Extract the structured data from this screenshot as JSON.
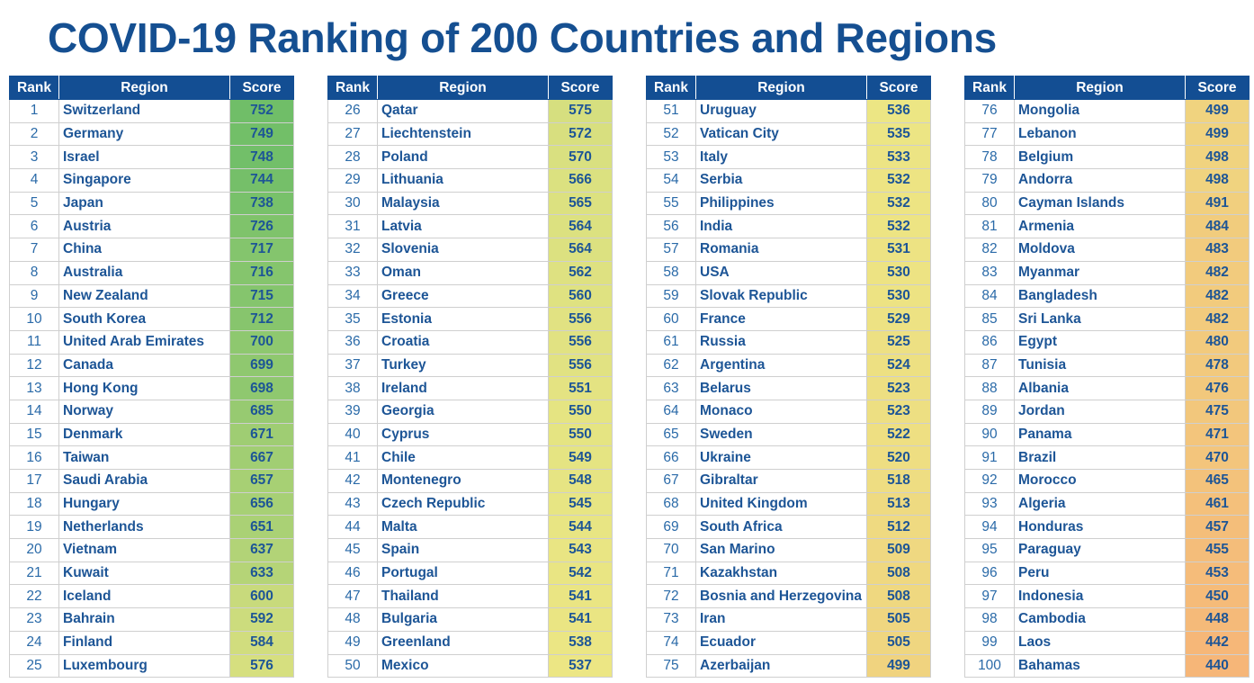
{
  "title": "COVID-19 Ranking of 200 Countries and Regions",
  "headers": {
    "rank": "Rank",
    "region": "Region",
    "score": "Score"
  },
  "columns": [
    [
      {
        "rank": "1",
        "region": "Switzerland",
        "score": "752"
      },
      {
        "rank": "2",
        "region": "Germany",
        "score": "749"
      },
      {
        "rank": "3",
        "region": "Israel",
        "score": "748"
      },
      {
        "rank": "4",
        "region": "Singapore",
        "score": "744"
      },
      {
        "rank": "5",
        "region": "Japan",
        "score": "738"
      },
      {
        "rank": "6",
        "region": "Austria",
        "score": "726"
      },
      {
        "rank": "7",
        "region": "China",
        "score": "717"
      },
      {
        "rank": "8",
        "region": "Australia",
        "score": "716"
      },
      {
        "rank": "9",
        "region": "New Zealand",
        "score": "715"
      },
      {
        "rank": "10",
        "region": "South Korea",
        "score": "712"
      },
      {
        "rank": "11",
        "region": "United Arab Emirates",
        "score": "700"
      },
      {
        "rank": "12",
        "region": "Canada",
        "score": "699"
      },
      {
        "rank": "13",
        "region": "Hong Kong",
        "score": "698"
      },
      {
        "rank": "14",
        "region": "Norway",
        "score": "685"
      },
      {
        "rank": "15",
        "region": "Denmark",
        "score": "671"
      },
      {
        "rank": "16",
        "region": "Taiwan",
        "score": "667"
      },
      {
        "rank": "17",
        "region": "Saudi Arabia",
        "score": "657"
      },
      {
        "rank": "18",
        "region": "Hungary",
        "score": "656"
      },
      {
        "rank": "19",
        "region": "Netherlands",
        "score": "651"
      },
      {
        "rank": "20",
        "region": "Vietnam",
        "score": "637"
      },
      {
        "rank": "21",
        "region": "Kuwait",
        "score": "633"
      },
      {
        "rank": "22",
        "region": "Iceland",
        "score": "600"
      },
      {
        "rank": "23",
        "region": "Bahrain",
        "score": "592"
      },
      {
        "rank": "24",
        "region": "Finland",
        "score": "584"
      },
      {
        "rank": "25",
        "region": "Luxembourg",
        "score": "576"
      }
    ],
    [
      {
        "rank": "26",
        "region": "Qatar",
        "score": "575"
      },
      {
        "rank": "27",
        "region": "Liechtenstein",
        "score": "572"
      },
      {
        "rank": "28",
        "region": "Poland",
        "score": "570"
      },
      {
        "rank": "29",
        "region": "Lithuania",
        "score": "566"
      },
      {
        "rank": "30",
        "region": "Malaysia",
        "score": "565"
      },
      {
        "rank": "31",
        "region": "Latvia",
        "score": "564"
      },
      {
        "rank": "32",
        "region": "Slovenia",
        "score": "564"
      },
      {
        "rank": "33",
        "region": "Oman",
        "score": "562"
      },
      {
        "rank": "34",
        "region": "Greece",
        "score": "560"
      },
      {
        "rank": "35",
        "region": "Estonia",
        "score": "556"
      },
      {
        "rank": "36",
        "region": "Croatia",
        "score": "556"
      },
      {
        "rank": "37",
        "region": "Turkey",
        "score": "556"
      },
      {
        "rank": "38",
        "region": "Ireland",
        "score": "551"
      },
      {
        "rank": "39",
        "region": "Georgia",
        "score": "550"
      },
      {
        "rank": "40",
        "region": "Cyprus",
        "score": "550"
      },
      {
        "rank": "41",
        "region": "Chile",
        "score": "549"
      },
      {
        "rank": "42",
        "region": "Montenegro",
        "score": "548"
      },
      {
        "rank": "43",
        "region": "Czech Republic",
        "score": "545"
      },
      {
        "rank": "44",
        "region": "Malta",
        "score": "544"
      },
      {
        "rank": "45",
        "region": "Spain",
        "score": "543"
      },
      {
        "rank": "46",
        "region": "Portugal",
        "score": "542"
      },
      {
        "rank": "47",
        "region": "Thailand",
        "score": "541"
      },
      {
        "rank": "48",
        "region": "Bulgaria",
        "score": "541"
      },
      {
        "rank": "49",
        "region": "Greenland",
        "score": "538"
      },
      {
        "rank": "50",
        "region": "Mexico",
        "score": "537"
      }
    ],
    [
      {
        "rank": "51",
        "region": "Uruguay",
        "score": "536"
      },
      {
        "rank": "52",
        "region": "Vatican City",
        "score": "535"
      },
      {
        "rank": "53",
        "region": "Italy",
        "score": "533"
      },
      {
        "rank": "54",
        "region": "Serbia",
        "score": "532"
      },
      {
        "rank": "55",
        "region": "Philippines",
        "score": "532"
      },
      {
        "rank": "56",
        "region": "India",
        "score": "532"
      },
      {
        "rank": "57",
        "region": "Romania",
        "score": "531"
      },
      {
        "rank": "58",
        "region": "USA",
        "score": "530"
      },
      {
        "rank": "59",
        "region": "Slovak Republic",
        "score": "530"
      },
      {
        "rank": "60",
        "region": "France",
        "score": "529"
      },
      {
        "rank": "61",
        "region": "Russia",
        "score": "525"
      },
      {
        "rank": "62",
        "region": "Argentina",
        "score": "524"
      },
      {
        "rank": "63",
        "region": "Belarus",
        "score": "523"
      },
      {
        "rank": "64",
        "region": "Monaco",
        "score": "523"
      },
      {
        "rank": "65",
        "region": "Sweden",
        "score": "522"
      },
      {
        "rank": "66",
        "region": "Ukraine",
        "score": "520"
      },
      {
        "rank": "67",
        "region": "Gibraltar",
        "score": "518"
      },
      {
        "rank": "68",
        "region": "United Kingdom",
        "score": "513"
      },
      {
        "rank": "69",
        "region": "South Africa",
        "score": "512"
      },
      {
        "rank": "70",
        "region": "San Marino",
        "score": "509"
      },
      {
        "rank": "71",
        "region": "Kazakhstan",
        "score": "508"
      },
      {
        "rank": "72",
        "region": "Bosnia and Herzegovina",
        "score": "508"
      },
      {
        "rank": "73",
        "region": "Iran",
        "score": "505"
      },
      {
        "rank": "74",
        "region": "Ecuador",
        "score": "505"
      },
      {
        "rank": "75",
        "region": "Azerbaijan",
        "score": "499"
      }
    ],
    [
      {
        "rank": "76",
        "region": "Mongolia",
        "score": "499"
      },
      {
        "rank": "77",
        "region": "Lebanon",
        "score": "499"
      },
      {
        "rank": "78",
        "region": "Belgium",
        "score": "498"
      },
      {
        "rank": "79",
        "region": "Andorra",
        "score": "498"
      },
      {
        "rank": "80",
        "region": "Cayman Islands",
        "score": "491"
      },
      {
        "rank": "81",
        "region": "Armenia",
        "score": "484"
      },
      {
        "rank": "82",
        "region": "Moldova",
        "score": "483"
      },
      {
        "rank": "83",
        "region": "Myanmar",
        "score": "482"
      },
      {
        "rank": "84",
        "region": "Bangladesh",
        "score": "482"
      },
      {
        "rank": "85",
        "region": "Sri Lanka",
        "score": "482"
      },
      {
        "rank": "86",
        "region": "Egypt",
        "score": "480"
      },
      {
        "rank": "87",
        "region": "Tunisia",
        "score": "478"
      },
      {
        "rank": "88",
        "region": "Albania",
        "score": "476"
      },
      {
        "rank": "89",
        "region": "Jordan",
        "score": "475"
      },
      {
        "rank": "90",
        "region": "Panama",
        "score": "471"
      },
      {
        "rank": "91",
        "region": "Brazil",
        "score": "470"
      },
      {
        "rank": "92",
        "region": "Morocco",
        "score": "465"
      },
      {
        "rank": "93",
        "region": "Algeria",
        "score": "461"
      },
      {
        "rank": "94",
        "region": "Honduras",
        "score": "457"
      },
      {
        "rank": "95",
        "region": "Paraguay",
        "score": "455"
      },
      {
        "rank": "96",
        "region": "Peru",
        "score": "453"
      },
      {
        "rank": "97",
        "region": "Indonesia",
        "score": "450"
      },
      {
        "rank": "98",
        "region": "Cambodia",
        "score": "448"
      },
      {
        "rank": "99",
        "region": "Laos",
        "score": "442"
      },
      {
        "rank": "100",
        "region": "Bahamas",
        "score": "440"
      }
    ]
  ]
}
